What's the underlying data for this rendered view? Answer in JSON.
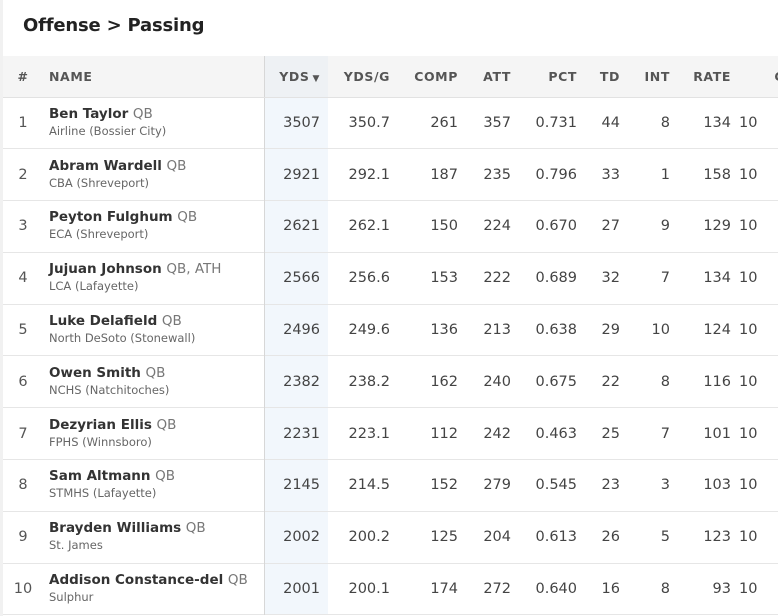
{
  "page": {
    "title": "Offense > Passing"
  },
  "table": {
    "headers": {
      "rank": "#",
      "name": "NAME",
      "yds": "YDS",
      "ypg": "YDS/G",
      "comp": "COMP",
      "att": "ATT",
      "pct": "PCT",
      "td": "TD",
      "int": "INT",
      "rate": "RATE",
      "gp": "GP"
    },
    "sort": {
      "column": "YDS",
      "direction": "descending",
      "indicator": "▼"
    },
    "rows": [
      {
        "rank": "1",
        "name": "Ben Taylor",
        "pos": "QB",
        "school": "Airline (Bossier City)",
        "yds": "3507",
        "ypg": "350.7",
        "comp": "261",
        "att": "357",
        "pct": "0.731",
        "td": "44",
        "int": "8",
        "rate": "134",
        "gp": "10"
      },
      {
        "rank": "2",
        "name": "Abram Wardell",
        "pos": "QB",
        "school": "CBA (Shreveport)",
        "yds": "2921",
        "ypg": "292.1",
        "comp": "187",
        "att": "235",
        "pct": "0.796",
        "td": "33",
        "int": "1",
        "rate": "158",
        "gp": "10"
      },
      {
        "rank": "3",
        "name": "Peyton Fulghum",
        "pos": "QB",
        "school": "ECA (Shreveport)",
        "yds": "2621",
        "ypg": "262.1",
        "comp": "150",
        "att": "224",
        "pct": "0.670",
        "td": "27",
        "int": "9",
        "rate": "129",
        "gp": "10"
      },
      {
        "rank": "4",
        "name": "Jujuan Johnson",
        "pos": "QB, ATH",
        "school": "LCA (Lafayette)",
        "yds": "2566",
        "ypg": "256.6",
        "comp": "153",
        "att": "222",
        "pct": "0.689",
        "td": "32",
        "int": "7",
        "rate": "134",
        "gp": "10"
      },
      {
        "rank": "5",
        "name": "Luke Delafield",
        "pos": "QB",
        "school": "North DeSoto (Stonewall)",
        "yds": "2496",
        "ypg": "249.6",
        "comp": "136",
        "att": "213",
        "pct": "0.638",
        "td": "29",
        "int": "10",
        "rate": "124",
        "gp": "10"
      },
      {
        "rank": "6",
        "name": "Owen Smith",
        "pos": "QB",
        "school": "NCHS (Natchitoches)",
        "yds": "2382",
        "ypg": "238.2",
        "comp": "162",
        "att": "240",
        "pct": "0.675",
        "td": "22",
        "int": "8",
        "rate": "116",
        "gp": "10"
      },
      {
        "rank": "7",
        "name": "Dezyrian Ellis",
        "pos": "QB",
        "school": "FPHS (Winnsboro)",
        "yds": "2231",
        "ypg": "223.1",
        "comp": "112",
        "att": "242",
        "pct": "0.463",
        "td": "25",
        "int": "7",
        "rate": "101",
        "gp": "10"
      },
      {
        "rank": "8",
        "name": "Sam Altmann",
        "pos": "QB",
        "school": "STMHS (Lafayette)",
        "yds": "2145",
        "ypg": "214.5",
        "comp": "152",
        "att": "279",
        "pct": "0.545",
        "td": "23",
        "int": "3",
        "rate": "103",
        "gp": "10"
      },
      {
        "rank": "9",
        "name": "Brayden Williams",
        "pos": "QB",
        "school": "St. James",
        "yds": "2002",
        "ypg": "200.2",
        "comp": "125",
        "att": "204",
        "pct": "0.613",
        "td": "26",
        "int": "5",
        "rate": "123",
        "gp": "10"
      },
      {
        "rank": "10",
        "name": "Addison Constance-del",
        "pos": "QB",
        "school": "Sulphur",
        "yds": "2001",
        "ypg": "200.1",
        "comp": "174",
        "att": "272",
        "pct": "0.640",
        "td": "16",
        "int": "8",
        "rate": "93",
        "gp": "10"
      }
    ]
  }
}
